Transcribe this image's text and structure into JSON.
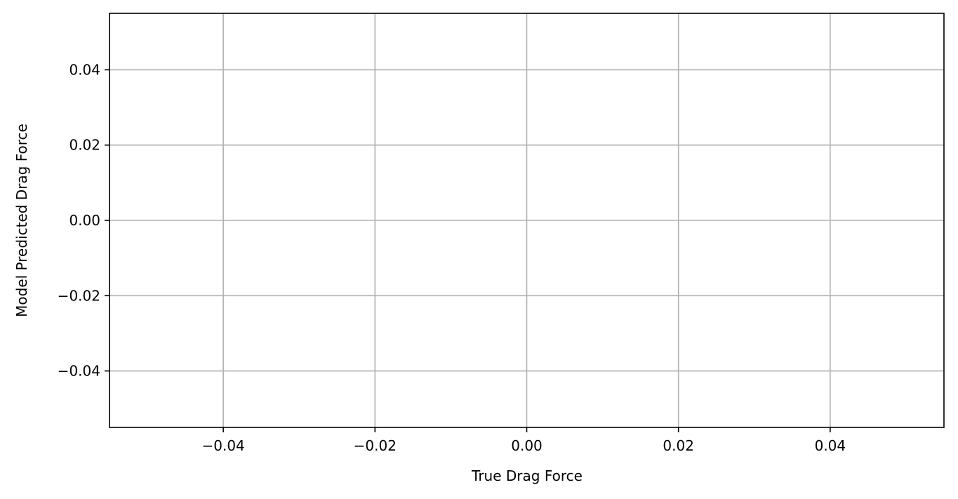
{
  "chart_data": {
    "type": "scatter",
    "title": "",
    "xlabel": "True Drag Force",
    "ylabel": "Model Predicted Drag Force",
    "xlim": [
      -0.055,
      0.055
    ],
    "ylim": [
      -0.055,
      0.055
    ],
    "x_ticks": [
      -0.04,
      -0.02,
      0.0,
      0.02,
      0.04
    ],
    "x_tick_labels": [
      "−0.04",
      "−0.02",
      "0.00",
      "0.02",
      "0.04"
    ],
    "y_ticks": [
      -0.04,
      -0.02,
      0.0,
      0.02,
      0.04
    ],
    "y_tick_labels": [
      "−0.04",
      "−0.02",
      "0.00",
      "0.02",
      "0.04"
    ],
    "grid": true,
    "legend": "none",
    "series": [
      {
        "x": [],
        "y": []
      }
    ],
    "colors": {
      "grid": "#b0b0b0",
      "axes": "#000000",
      "background": "#ffffff"
    }
  }
}
